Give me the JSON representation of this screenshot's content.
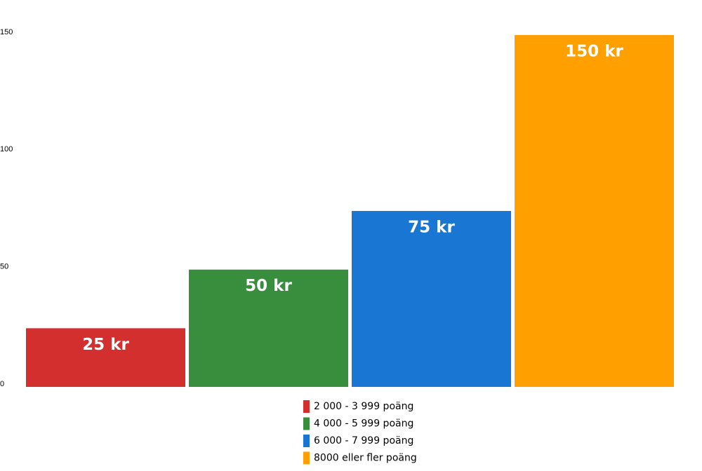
{
  "chart_data": {
    "type": "bar",
    "categories": [
      null
    ],
    "series": [
      {
        "name": "2 000 - 3 999 poäng",
        "color": "#d32f2f",
        "values": [
          25
        ],
        "value_labels": [
          "25 kr"
        ]
      },
      {
        "name": "4 000 - 5 999 poäng",
        "color": "#388e3c",
        "values": [
          50
        ],
        "value_labels": [
          "50 kr"
        ]
      },
      {
        "name": "6 000 - 7 999 poäng",
        "color": "#1976d2",
        "values": [
          75
        ],
        "value_labels": [
          "75 kr"
        ]
      },
      {
        "name": "8000 eller fler poäng",
        "color": "#ffa000",
        "values": [
          150
        ],
        "value_labels": [
          "150 kr"
        ]
      }
    ],
    "ylim": [
      0,
      150
    ],
    "yticks": [
      0,
      50,
      100,
      150
    ],
    "grid": false
  }
}
